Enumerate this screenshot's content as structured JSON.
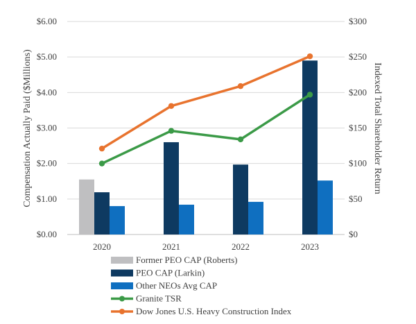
{
  "chart_data": {
    "type": "bar",
    "title": "",
    "categories": [
      "2020",
      "2021",
      "2022",
      "2023"
    ],
    "ylabel": "Compensation Actually Paid ($Millions)",
    "y2label": "Indexed Total Shareholder Return",
    "ylim": [
      0,
      6
    ],
    "y2lim": [
      0,
      300
    ],
    "yticks": [
      "$0.00",
      "$1.00",
      "$2.00",
      "$3.00",
      "$4.00",
      "$5.00",
      "$6.00"
    ],
    "y2ticks": [
      "$0",
      "$50",
      "$100",
      "$150",
      "$200",
      "$250",
      "$300"
    ],
    "grid": true,
    "legend_position": "bottom",
    "bar_series": [
      {
        "name": "Former PEO CAP (Roberts)",
        "color": "#bfbfc1",
        "values": [
          1.55,
          null,
          null,
          null
        ]
      },
      {
        "name": "PEO CAP (Larkin)",
        "color": "#0e3a61",
        "values": [
          1.19,
          2.6,
          1.97,
          4.9
        ]
      },
      {
        "name": "Other NEOs Avg CAP",
        "color": "#0f6fc0",
        "values": [
          0.8,
          0.84,
          0.92,
          1.52
        ]
      }
    ],
    "line_series": [
      {
        "name": "Granite TSR",
        "color": "#3b9a47",
        "axis": "right",
        "values": [
          100,
          146,
          134,
          197
        ]
      },
      {
        "name": "Dow Jones U.S. Heavy Construction Index",
        "color": "#e8732e",
        "axis": "right",
        "values": [
          121,
          181,
          209,
          251
        ]
      }
    ]
  }
}
